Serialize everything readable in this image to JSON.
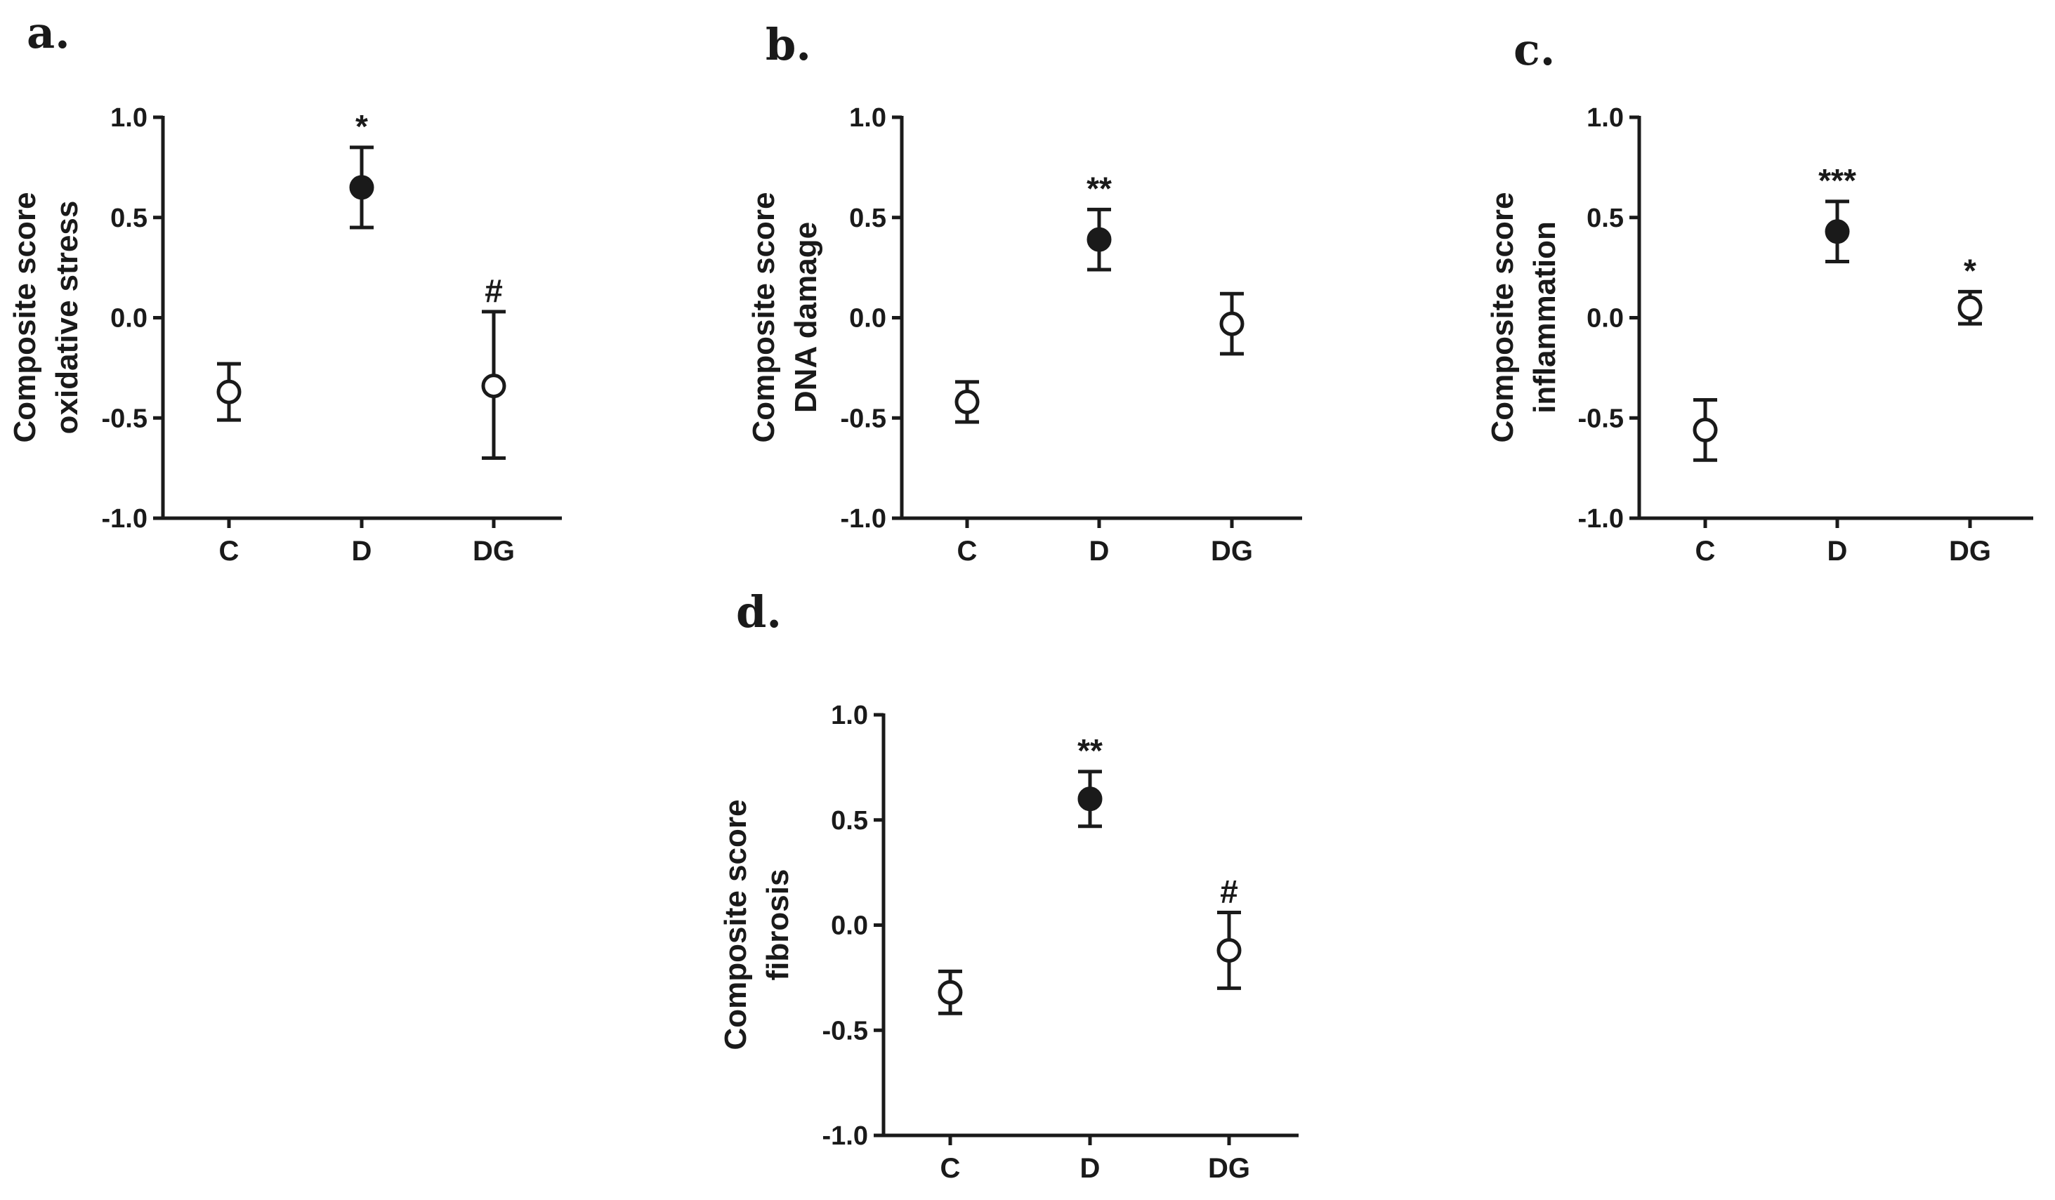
{
  "colors": {
    "ink": "#1a1a1a",
    "filled_marker": "#1a1a1a",
    "open_marker": "#ffffff"
  },
  "chart_data": [
    {
      "type": "scatter",
      "panel": "a.",
      "ylabel_lines": [
        "Composite score",
        "oxidative stress"
      ],
      "categories": [
        "C",
        "D",
        "DG"
      ],
      "values": [
        -0.37,
        0.65,
        -0.34
      ],
      "err_upper": [
        -0.23,
        0.85,
        0.03
      ],
      "err_lower": [
        -0.51,
        0.45,
        -0.7
      ],
      "marker": [
        "open",
        "filled",
        "open"
      ],
      "annotations": [
        "",
        "*",
        "#"
      ],
      "ylim": [
        -1.0,
        1.0
      ],
      "yticks": [
        "1.0",
        "0.5",
        "0.0",
        "-0.5",
        "-1.0"
      ],
      "grid": false
    },
    {
      "type": "scatter",
      "panel": "b.",
      "ylabel_lines": [
        "Composite score",
        "DNA damage"
      ],
      "categories": [
        "C",
        "D",
        "DG"
      ],
      "values": [
        -0.42,
        0.39,
        -0.03
      ],
      "err_upper": [
        -0.32,
        0.54,
        0.12
      ],
      "err_lower": [
        -0.52,
        0.24,
        -0.18
      ],
      "marker": [
        "open",
        "filled",
        "open"
      ],
      "annotations": [
        "",
        "**",
        ""
      ],
      "ylim": [
        -1.0,
        1.0
      ],
      "yticks": [
        "1.0",
        "0.5",
        "0.0",
        "-0.5",
        "-1.0"
      ],
      "grid": false
    },
    {
      "type": "scatter",
      "panel": "c.",
      "ylabel_lines": [
        "Composite score",
        "inflammation"
      ],
      "categories": [
        "C",
        "D",
        "DG"
      ],
      "values": [
        -0.56,
        0.43,
        0.05
      ],
      "err_upper": [
        -0.41,
        0.58,
        0.13
      ],
      "err_lower": [
        -0.71,
        0.28,
        -0.03
      ],
      "marker": [
        "open",
        "filled",
        "open"
      ],
      "annotations": [
        "",
        "***",
        "*"
      ],
      "ylim": [
        -1.0,
        1.0
      ],
      "yticks": [
        "1.0",
        "0.5",
        "0.0",
        "-0.5",
        "-1.0"
      ],
      "grid": false
    },
    {
      "type": "scatter",
      "panel": "d.",
      "ylabel_lines": [
        "Composite score",
        "fibrosis"
      ],
      "categories": [
        "C",
        "D",
        "DG"
      ],
      "values": [
        -0.32,
        0.6,
        -0.12
      ],
      "err_upper": [
        -0.22,
        0.73,
        0.06
      ],
      "err_lower": [
        -0.42,
        0.47,
        -0.3
      ],
      "marker": [
        "open",
        "filled",
        "open"
      ],
      "annotations": [
        "",
        "**",
        "#"
      ],
      "ylim": [
        -1.0,
        1.0
      ],
      "yticks": [
        "1.0",
        "0.5",
        "0.0",
        "-0.5",
        "-1.0"
      ],
      "grid": false
    }
  ]
}
